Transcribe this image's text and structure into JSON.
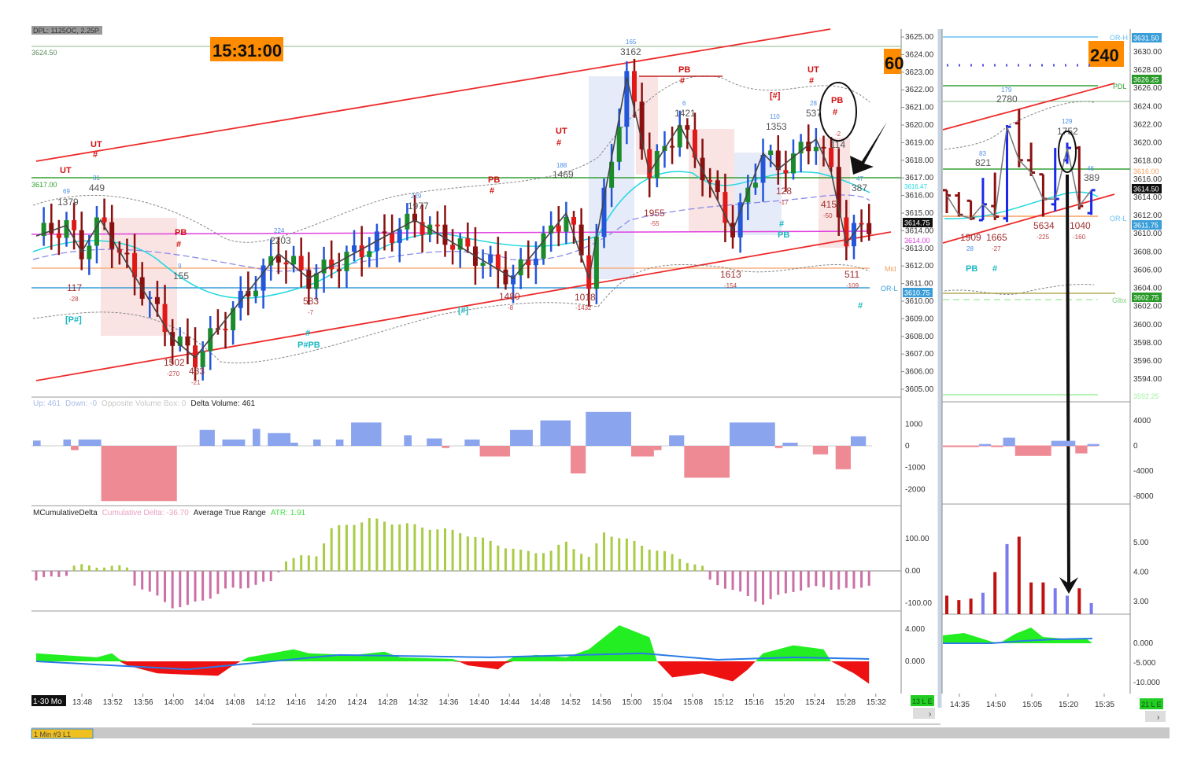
{
  "header": {
    "dpl_label": "DPL: 1125OC, 2.25P",
    "clock": "15:31:00",
    "tf_60": "60",
    "tf_240": "240",
    "left_level": "3624.50",
    "level_3617": "3617.00"
  },
  "main_labels": {
    "ut1": "UT",
    "ut1_hash": "#",
    "ut2": "UT",
    "pb1": "PB",
    "pb1_hash": "#",
    "pb2": "PB",
    "pb2_hash": "#",
    "ut3": "UT",
    "ut3_hash": "#",
    "pb3": "PB",
    "pb3_hash": "#",
    "ut4": "UT",
    "ut4_hash": "#",
    "bracket_hash": "[#]",
    "pb4": "PB",
    "pb4_hash": "#",
    "pb4_small": "-2",
    "ppb": "[P#]",
    "pfpb": "P#PB",
    "pfpb_hash": "#",
    "bracket2": "[#]",
    "pb5": "PB",
    "pb5_hash": "#",
    "end_hash": "#",
    "v1379": "1379",
    "v69": "69",
    "v449": "449",
    "v31": "31",
    "v117": "117",
    "v117s": "-28",
    "v155": "155",
    "v155s": "9",
    "v1502": "1502",
    "v1502s": "-270",
    "v483": "483",
    "v483s": "-21",
    "v2203": "2203",
    "v2203s": "224",
    "v583": "583",
    "v583s": "-7",
    "v1977": "1977",
    "v1977s": "229",
    "v1480": "1480",
    "v1480s": "-8",
    "v1469": "1469",
    "v1469s": "188",
    "v1018": "1018",
    "v1018s": "-1432",
    "v3162": "3162",
    "v3162s": "165",
    "v1955": "1955",
    "v1955s": "-55",
    "v1421": "1421",
    "v1421s": "6",
    "v1613": "1613",
    "v1613s": "-154",
    "v1353": "1353",
    "v1353s": "110",
    "v128": "128",
    "v128s": "-17",
    "v537": "537",
    "v537s": "28",
    "v114": "114",
    "v415": "415",
    "v415s": "-50",
    "v387": "387",
    "v387s": "47",
    "v511": "511",
    "v511s": "-109",
    "mid": "Mid",
    "orl": "OR-L"
  },
  "main_axis": {
    "ticks": [
      "3625.00",
      "3624.00",
      "3623.00",
      "3622.00",
      "3621.00",
      "3620.00",
      "3619.00",
      "3618.00",
      "3617.00",
      "3616.00",
      "3615.00",
      "3614.00",
      "3613.00",
      "3612.00",
      "3611.00",
      "3610.00",
      "3609.00",
      "3608.00",
      "3607.00",
      "3606.00",
      "3605.00"
    ],
    "badge_last": "3614.75",
    "badge_magenta": "3614.00",
    "badge_cyan": "3616.47",
    "badge_orl": "3610.75",
    "vol_ticks": [
      "1000",
      "0",
      "-1000",
      "-2000"
    ],
    "cd_ticks": [
      "100.00",
      "0.00",
      "-100.00"
    ],
    "osc_ticks": [
      "4.000",
      "0.000"
    ]
  },
  "right_axis": {
    "ticks": [
      "3630.00",
      "3628.00",
      "3626.00",
      "3624.00",
      "3622.00",
      "3620.00",
      "3618.00",
      "3616.00",
      "3614.00",
      "3612.00",
      "3610.00",
      "3608.00",
      "3606.00",
      "3604.00",
      "3602.00",
      "3600.00",
      "3598.00",
      "3596.00",
      "3594.00"
    ],
    "orh": "OR-H",
    "orh_val": "3631.50",
    "pdl": "PDL",
    "pdl_val": "3626.25",
    "orange_val": "3616.00",
    "last_val": "3614.50",
    "orl": "OR-L",
    "orl_val": "3611.75",
    "glbx": "Glbx",
    "glbx_val": "3602.75",
    "bottom_val": "3592.25",
    "vol_ticks": [
      "4000",
      "0",
      "-4000",
      "-8000"
    ],
    "atr_ticks": [
      "5.00",
      "4.00",
      "3.00"
    ],
    "osc_ticks": [
      "0.000",
      "-5.000",
      "-10.000"
    ]
  },
  "right_labels": {
    "v2780": "2780",
    "v2780s": "179",
    "v821": "821",
    "v821s": "83",
    "v1752": "1752",
    "v1752s": "129",
    "v389": "389",
    "v389s": "46",
    "v1909": "1909",
    "v1909s": "28",
    "v1665": "1665",
    "v1665s": "-27",
    "v5634": "5634",
    "v5634s": "-225",
    "v1040": "1040",
    "v1040s": "-160",
    "pb": "PB",
    "hash": "#"
  },
  "indicators": {
    "vol_up": "Up: 461",
    "vol_down": "Down: -0",
    "vol_opp": "Opposite Volume Box: 0",
    "vol_delta": "Delta Volume: 461",
    "cd_name": "MCumulativeDelta",
    "cd_value": "Cumulative Delta: -36.70",
    "atr_name": "Average True Range",
    "atr_value": "ATR: 1.91"
  },
  "time_axis": {
    "main_label": "1-30 Mo",
    "main": [
      "13:48",
      "13:52",
      "13:56",
      "14:00",
      "14:04",
      "14:08",
      "14:12",
      "14:16",
      "14:20",
      "14:24",
      "14:28",
      "14:32",
      "14:36",
      "14:40",
      "14:44",
      "14:48",
      "14:52",
      "14:56",
      "15:00",
      "15:04",
      "15:08",
      "15:12",
      "15:16",
      "15:20",
      "15:24",
      "15:28",
      "15:32"
    ],
    "main_badge": "13 L E",
    "right": [
      "14:35",
      "14:50",
      "15:05",
      "15:20",
      "15:35"
    ],
    "right_badge": "21 L E"
  },
  "tab": {
    "label": "1 Min #3 L1"
  },
  "colors": {
    "up": "#1a8a2a",
    "up_wick": "#2456d8",
    "down": "#e01818",
    "down_dark": "#8b1010",
    "channel": "#ee2a2a",
    "vol_up": "#8aa4ee",
    "vol_down": "#ee8a94",
    "cd_up": "#a8cc44",
    "cd_down": "#cc6fa6",
    "osc_up": "#22ee22",
    "osc_down": "#ee1111",
    "osc_line": "#2a7ae8"
  },
  "chart_data": {
    "type": "candlestick",
    "price_range": [
      3605,
      3625
    ],
    "zigzag_swings": [
      [
        0,
        3613.7
      ],
      [
        4,
        3614.3
      ],
      [
        6,
        3612.8
      ],
      [
        8.5,
        3614.6
      ],
      [
        18,
        3607.9
      ],
      [
        21,
        3606.8
      ],
      [
        32,
        3612.7
      ],
      [
        36,
        3611.3
      ],
      [
        50,
        3614.6
      ],
      [
        63,
        3611.3
      ],
      [
        70,
        3615
      ],
      [
        73,
        3611.3
      ],
      [
        78,
        3622.7
      ],
      [
        81,
        3617.3
      ],
      [
        85,
        3620
      ],
      [
        92,
        3614
      ],
      [
        96,
        3618.4
      ],
      [
        98,
        3617.5
      ],
      [
        103,
        3619.2
      ],
      [
        105,
        3617.3
      ],
      [
        107,
        3613.3
      ],
      [
        109,
        3614.4
      ]
    ],
    "delta_volume_boxes": [
      [
        0,
        1,
        250
      ],
      [
        4,
        5,
        300
      ],
      [
        5,
        6,
        -200
      ],
      [
        6,
        9,
        300
      ],
      [
        9,
        19,
        -2600
      ],
      [
        22,
        24,
        750
      ],
      [
        25,
        28,
        300
      ],
      [
        29,
        30,
        800
      ],
      [
        31,
        34,
        600
      ],
      [
        34,
        35,
        150
      ],
      [
        37,
        38,
        300
      ],
      [
        40,
        41,
        300
      ],
      [
        42,
        46,
        1100
      ],
      [
        49,
        50,
        500
      ],
      [
        52,
        54,
        350
      ],
      [
        54,
        55,
        -100
      ],
      [
        57,
        59,
        300
      ],
      [
        59,
        63,
        -500
      ],
      [
        63,
        66,
        750
      ],
      [
        67,
        71,
        1200
      ],
      [
        71,
        73,
        -1300
      ],
      [
        73,
        79,
        1600
      ],
      [
        79,
        82,
        -500
      ],
      [
        82,
        83,
        -200
      ],
      [
        84,
        86,
        500
      ],
      [
        86,
        92,
        -1500
      ],
      [
        92,
        98,
        1100
      ],
      [
        98,
        99,
        -100
      ],
      [
        99,
        101,
        150
      ],
      [
        103,
        105,
        -400
      ],
      [
        106,
        108,
        -1100
      ],
      [
        108,
        110,
        450
      ]
    ],
    "cumulative_delta_keys": [
      [
        0,
        -30
      ],
      [
        4,
        -10
      ],
      [
        5,
        15
      ],
      [
        9,
        15
      ],
      [
        12,
        10
      ],
      [
        13,
        -40
      ],
      [
        18,
        -110
      ],
      [
        20,
        -110
      ],
      [
        25,
        -60
      ],
      [
        31,
        -35
      ],
      [
        33,
        35
      ],
      [
        37,
        50
      ],
      [
        39,
        130
      ],
      [
        44,
        160
      ],
      [
        50,
        140
      ],
      [
        56,
        120
      ],
      [
        60,
        90
      ],
      [
        64,
        60
      ],
      [
        68,
        60
      ],
      [
        70,
        90
      ],
      [
        73,
        40
      ],
      [
        75,
        120
      ],
      [
        80,
        80
      ],
      [
        85,
        40
      ],
      [
        88,
        10
      ],
      [
        89,
        -30
      ],
      [
        92,
        -60
      ],
      [
        96,
        -100
      ],
      [
        100,
        -60
      ],
      [
        104,
        -50
      ],
      [
        108,
        -60
      ],
      [
        110,
        -40
      ]
    ],
    "oscillator_keys": [
      [
        0,
        1
      ],
      [
        8,
        0.5
      ],
      [
        10,
        1
      ],
      [
        12,
        -0.5
      ],
      [
        16,
        -1.5
      ],
      [
        24,
        -1.8
      ],
      [
        26,
        -0.5
      ],
      [
        28,
        0.5
      ],
      [
        34,
        1.5
      ],
      [
        36,
        1
      ],
      [
        42,
        0.8
      ],
      [
        46,
        1.2
      ],
      [
        48,
        0.5
      ],
      [
        55,
        0.3
      ],
      [
        57,
        -0.5
      ],
      [
        61,
        -1
      ],
      [
        63,
        0.5
      ],
      [
        66,
        0.8
      ],
      [
        70,
        0.5
      ],
      [
        73,
        1.5
      ],
      [
        77,
        4.5
      ],
      [
        81,
        3
      ],
      [
        82,
        0
      ],
      [
        84,
        -2
      ],
      [
        88,
        -1.5
      ],
      [
        92,
        -2.5
      ],
      [
        94,
        -1
      ],
      [
        96,
        1
      ],
      [
        100,
        2
      ],
      [
        104,
        1.5
      ],
      [
        105,
        0
      ],
      [
        108,
        -1.5
      ],
      [
        110,
        -2.8
      ]
    ],
    "oscillator_line_keys": [
      [
        0,
        0
      ],
      [
        20,
        -1
      ],
      [
        40,
        0.8
      ],
      [
        60,
        0.5
      ],
      [
        80,
        1
      ],
      [
        90,
        0.2
      ],
      [
        100,
        0.5
      ],
      [
        110,
        0.3
      ]
    ],
    "right_bars": [
      {
        "o": 3616.3,
        "h": 3616.3,
        "l": 3615.0,
        "c": 3616.0,
        "dir": "down"
      },
      {
        "o": 3616.0,
        "h": 3616.2,
        "l": 3614.8,
        "c": 3614.9,
        "dir": "down"
      },
      {
        "o": 3615.7,
        "h": 3615.7,
        "l": 3614.6,
        "c": 3614.7,
        "dir": "down"
      },
      {
        "o": 3614.6,
        "h": 3617.0,
        "l": 3614.6,
        "c": 3615.5,
        "dir": "up"
      },
      {
        "o": 3615.4,
        "h": 3617.3,
        "l": 3614.6,
        "c": 3614.8,
        "dir": "down"
      },
      {
        "o": 3614.7,
        "h": 3620.0,
        "l": 3614.5,
        "c": 3619.9,
        "dir": "up"
      },
      {
        "o": 3620.1,
        "h": 3620.9,
        "l": 3617.6,
        "c": 3618.0,
        "dir": "down"
      },
      {
        "o": 3618.0,
        "h": 3619.0,
        "l": 3617.1,
        "c": 3617.3,
        "dir": "down"
      },
      {
        "o": 3617.2,
        "h": 3617.2,
        "l": 3614.8,
        "c": 3615.8,
        "dir": "down"
      },
      {
        "o": 3615.5,
        "h": 3618.7,
        "l": 3615.1,
        "c": 3615.8,
        "dir": "up"
      },
      {
        "o": 3618.0,
        "h": 3619.0,
        "l": 3617.8,
        "c": 3618.7,
        "dir": "up"
      },
      {
        "o": 3618.7,
        "h": 3618.8,
        "l": 3615.2,
        "c": 3615.4,
        "dir": "down"
      },
      {
        "o": 3615.0,
        "h": 3616.3,
        "l": 3614.9,
        "c": 3616.3,
        "dir": "up"
      }
    ],
    "right_volume_boxes": [
      [
        0,
        3,
        -30
      ],
      [
        3,
        4,
        300
      ],
      [
        4,
        5,
        -100
      ],
      [
        5,
        6,
        1300
      ],
      [
        6,
        9,
        -1600
      ],
      [
        9,
        11,
        800
      ],
      [
        11,
        12,
        -1200
      ],
      [
        12,
        13,
        300
      ]
    ],
    "right_atr": [
      [
        3.2,
        "down"
      ],
      [
        3.05,
        "down"
      ],
      [
        3.1,
        "down"
      ],
      [
        3.3,
        "up"
      ],
      [
        4.0,
        "down"
      ],
      [
        4.95,
        "up"
      ],
      [
        5.2,
        "down"
      ],
      [
        3.65,
        "down"
      ],
      [
        3.65,
        "down"
      ],
      [
        3.45,
        "up"
      ],
      [
        3.2,
        "up"
      ],
      [
        3.45,
        "down"
      ],
      [
        2.95,
        "up"
      ]
    ]
  }
}
